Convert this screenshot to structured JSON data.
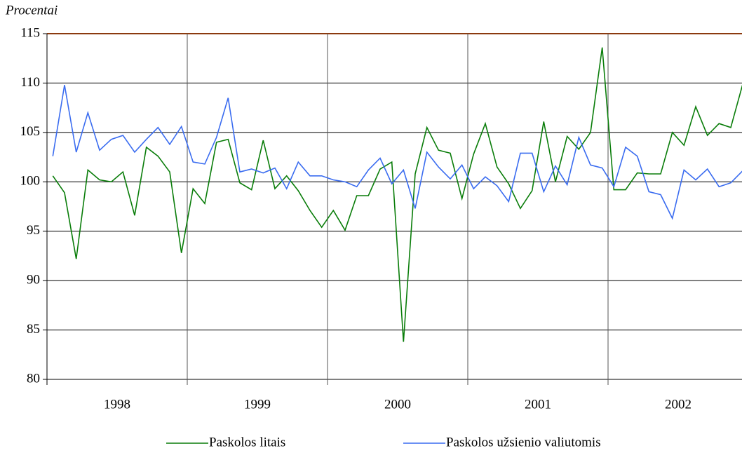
{
  "chart_data": {
    "type": "line",
    "y_label": "Procentai",
    "categories": [
      null,
      null,
      null,
      null,
      null,
      null,
      "1998",
      null,
      null,
      null,
      null,
      null,
      null,
      null,
      null,
      null,
      null,
      null,
      "1999",
      null,
      null,
      null,
      null,
      null,
      null,
      null,
      null,
      null,
      null,
      null,
      "2000",
      null,
      null,
      null,
      null,
      null,
      null,
      null,
      null,
      null,
      null,
      null,
      "2001",
      null,
      null,
      null,
      null,
      null,
      null,
      null,
      null,
      null,
      null,
      null,
      "2002",
      null,
      null,
      null,
      null,
      null
    ],
    "ylim": [
      80,
      115
    ],
    "yticks": [
      80,
      85,
      90,
      95,
      100,
      105,
      110,
      115
    ],
    "grid": true,
    "series": [
      {
        "name": "Paskolos litais",
        "color": "#0a7d0a",
        "values": [
          100.6,
          98.9,
          92.2,
          101.2,
          100.2,
          100.0,
          101.0,
          96.6,
          103.5,
          102.6,
          101.0,
          92.8,
          99.3,
          97.8,
          104.0,
          104.3,
          99.9,
          99.2,
          104.2,
          99.3,
          100.6,
          99.1,
          97.1,
          95.4,
          97.1,
          95.1,
          98.6,
          98.6,
          101.3,
          102.0,
          83.8,
          100.8,
          105.5,
          103.2,
          102.9,
          98.3,
          102.8,
          105.9,
          101.5,
          99.8,
          97.3,
          99.1,
          106.1,
          100.0,
          104.6,
          103.3,
          105.0,
          113.6,
          99.2,
          99.2,
          100.9,
          100.8,
          100.8,
          105.0,
          103.7,
          107.6,
          104.7,
          105.9,
          105.5,
          109.8
        ]
      },
      {
        "name": "Paskolos užsienio valiutomis",
        "color": "#3a6cf0",
        "values": [
          102.6,
          109.8,
          103.0,
          107.0,
          103.2,
          104.3,
          104.7,
          103.0,
          104.3,
          105.5,
          103.8,
          105.6,
          102.0,
          101.8,
          104.5,
          108.5,
          101.0,
          101.3,
          100.9,
          101.4,
          99.3,
          102.0,
          100.6,
          100.6,
          100.2,
          100.0,
          99.5,
          101.2,
          102.4,
          99.8,
          101.2,
          97.3,
          103.0,
          101.5,
          100.3,
          101.7,
          99.3,
          100.5,
          99.6,
          98.0,
          102.9,
          102.9,
          99.0,
          101.6,
          99.7,
          104.5,
          101.7,
          101.4,
          99.5,
          103.5,
          102.6,
          99.0,
          98.7,
          96.3,
          101.2,
          100.2,
          101.3,
          99.5,
          99.9,
          101.1
        ]
      }
    ]
  }
}
